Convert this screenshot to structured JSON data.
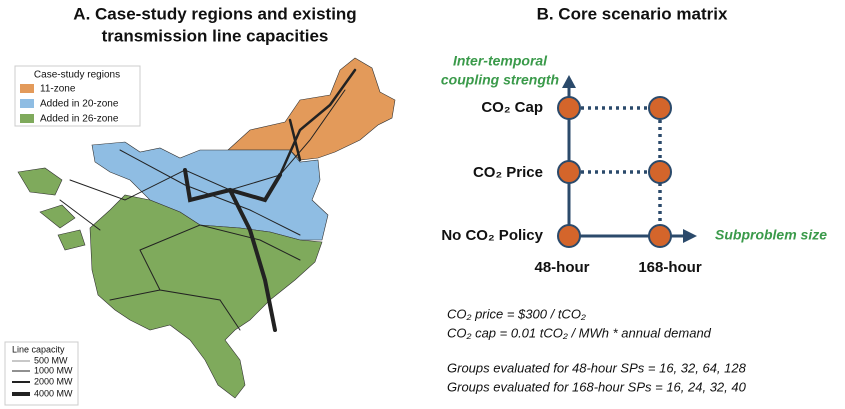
{
  "panel_a": {
    "title_lines": [
      "A. Case-study regions and existing",
      "transmission line capacities"
    ],
    "regions_legend": {
      "title": "Case-study regions",
      "items": [
        "11-zone",
        "Added in 20-zone",
        "Added in 26-zone"
      ]
    },
    "capacity_legend": {
      "title": "Line capacity",
      "items": [
        "500 MW",
        "1000 MW",
        "2000 MW",
        "4000 MW"
      ]
    }
  },
  "panel_b": {
    "title": "B. Core scenario matrix",
    "y_axis_label_lines": [
      "Inter-temporal",
      "coupling strength"
    ],
    "x_axis_label": "Subproblem size",
    "rows": [
      "CO₂ Cap",
      "CO₂ Price",
      "No CO₂ Policy"
    ],
    "columns": [
      "48-hour",
      "168-hour"
    ],
    "notes": [
      "CO₂ price = $300 / tCO₂",
      "CO₂ cap = 0.01 tCO₂ / MWh * annual demand",
      "Groups evaluated for 48-hour SPs = 16, 32, 64, 128",
      "Groups evaluated for 168-hour SPs = 16, 24, 32, 40"
    ]
  }
}
